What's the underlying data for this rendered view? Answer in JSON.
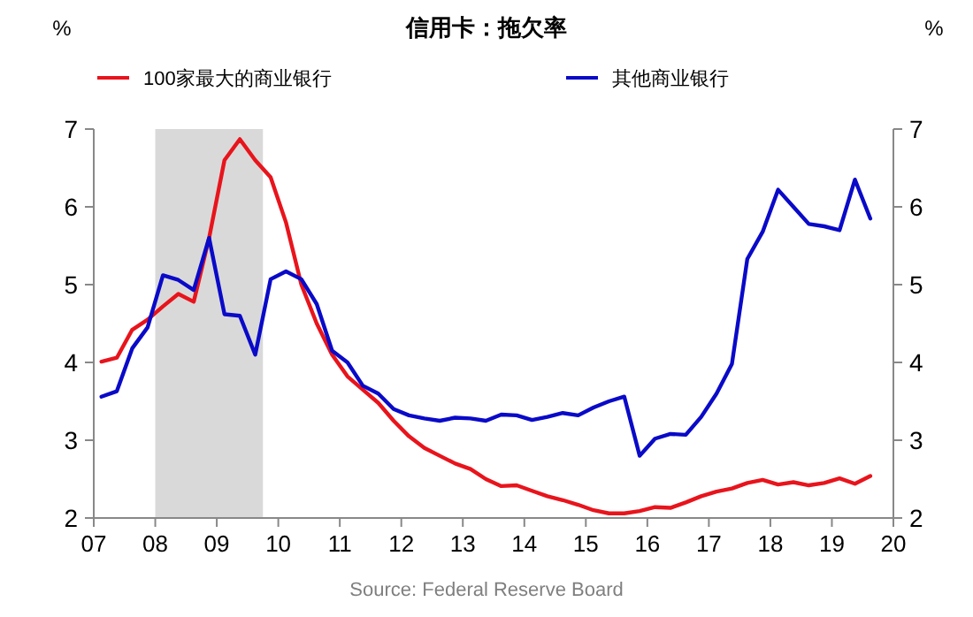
{
  "chart_data": {
    "type": "line",
    "title": "信用卡：拖欠率",
    "ylabel": "%",
    "y2label": "%",
    "x": [
      2007.125,
      2007.375,
      2007.625,
      2007.875,
      2008.125,
      2008.375,
      2008.625,
      2008.875,
      2009.125,
      2009.375,
      2009.625,
      2009.875,
      2010.125,
      2010.375,
      2010.625,
      2010.875,
      2011.125,
      2011.375,
      2011.625,
      2011.875,
      2012.125,
      2012.375,
      2012.625,
      2012.875,
      2013.125,
      2013.375,
      2013.625,
      2013.875,
      2014.125,
      2014.375,
      2014.625,
      2014.875,
      2015.125,
      2015.375,
      2015.625,
      2015.875,
      2016.125,
      2016.375,
      2016.625,
      2016.875,
      2017.125,
      2017.375,
      2017.625,
      2017.875,
      2018.125,
      2018.375,
      2018.625,
      2018.875,
      2019.125,
      2019.375,
      2019.625
    ],
    "series": [
      {
        "name": "100家最大的商业银行",
        "color": "#e8141c",
        "values": [
          4.01,
          4.06,
          4.42,
          4.55,
          4.72,
          4.88,
          4.78,
          5.6,
          6.6,
          6.87,
          6.6,
          6.38,
          5.8,
          5.0,
          4.5,
          4.1,
          3.82,
          3.65,
          3.48,
          3.25,
          3.05,
          2.9,
          2.8,
          2.7,
          2.63,
          2.5,
          2.41,
          2.42,
          2.35,
          2.28,
          2.23,
          2.17,
          2.1,
          2.06,
          2.06,
          2.09,
          2.14,
          2.13,
          2.2,
          2.28,
          2.34,
          2.38,
          2.45,
          2.49,
          2.43,
          2.46,
          2.42,
          2.45,
          2.51,
          2.44,
          2.54
        ]
      },
      {
        "name": "其他商业银行",
        "color": "#0a0ac8",
        "values": [
          3.56,
          3.63,
          4.18,
          4.45,
          5.12,
          5.06,
          4.93,
          5.6,
          4.62,
          4.6,
          4.1,
          5.07,
          5.17,
          5.07,
          4.75,
          4.15,
          4.0,
          3.7,
          3.6,
          3.4,
          3.32,
          3.28,
          3.25,
          3.29,
          3.28,
          3.25,
          3.33,
          3.32,
          3.26,
          3.3,
          3.35,
          3.32,
          3.42,
          3.5,
          3.56,
          2.8,
          3.02,
          3.08,
          3.07,
          3.3,
          3.6,
          3.98,
          5.33,
          5.68,
          6.22,
          6.0,
          5.78,
          5.75,
          5.7,
          6.35,
          5.85
        ]
      }
    ],
    "xlim": [
      2007,
      2020
    ],
    "xticks": [
      {
        "value": 2007,
        "label": "07"
      },
      {
        "value": 2008,
        "label": "08"
      },
      {
        "value": 2009,
        "label": "09"
      },
      {
        "value": 2010,
        "label": "10"
      },
      {
        "value": 2011,
        "label": "11"
      },
      {
        "value": 2012,
        "label": "12"
      },
      {
        "value": 2013,
        "label": "13"
      },
      {
        "value": 2014,
        "label": "14"
      },
      {
        "value": 2015,
        "label": "15"
      },
      {
        "value": 2016,
        "label": "16"
      },
      {
        "value": 2017,
        "label": "17"
      },
      {
        "value": 2018,
        "label": "18"
      },
      {
        "value": 2019,
        "label": "19"
      },
      {
        "value": 2020,
        "label": "20"
      }
    ],
    "ylim": [
      2,
      7
    ],
    "yticks": [
      2,
      3,
      4,
      5,
      6,
      7
    ],
    "y2lim": [
      2,
      7
    ],
    "y2ticks": [
      2,
      3,
      4,
      5,
      6,
      7
    ],
    "bands": [
      {
        "axis": "x",
        "from": 2008,
        "to": 2009.75,
        "color": "#d9d9d9"
      }
    ],
    "legend": "top",
    "grid": false,
    "line_style": "solid",
    "annotations": [
      "Source: Federal Reserve Board"
    ]
  }
}
